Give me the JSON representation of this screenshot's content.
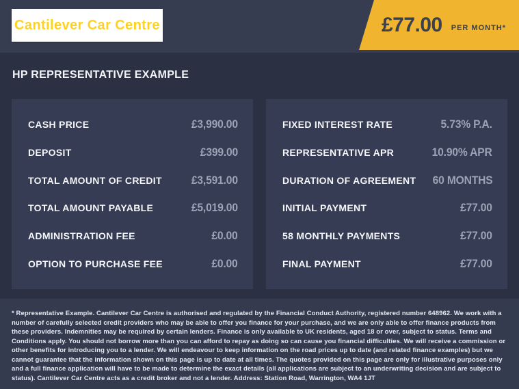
{
  "brand": {
    "logo_text": "Cantilever Car Centre",
    "logo_text_color": "#ffd21e",
    "logo_bg_color": "#ffffff"
  },
  "price_banner": {
    "amount": "£77.00",
    "period": "PER MONTH*",
    "bg_color": "#f0b42e",
    "text_color": "#3c414e"
  },
  "heading": "HP REPRESENTATIVE EXAMPLE",
  "finance": {
    "left_rows": [
      {
        "label": "CASH PRICE",
        "value": "£3,990.00"
      },
      {
        "label": "DEPOSIT",
        "value": "£399.00"
      },
      {
        "label": "TOTAL AMOUNT OF CREDIT",
        "value": "£3,591.00"
      },
      {
        "label": "TOTAL AMOUNT PAYABLE",
        "value": "£5,019.00"
      },
      {
        "label": "ADMINISTRATION FEE",
        "value": "£0.00"
      },
      {
        "label": "OPTION TO PURCHASE FEE",
        "value": "£0.00"
      }
    ],
    "right_rows": [
      {
        "label": "FIXED INTEREST RATE",
        "value": "5.73% P.A."
      },
      {
        "label": "REPRESENTATIVE APR",
        "value": "10.90% APR"
      },
      {
        "label": "DURATION OF AGREEMENT",
        "value": "60 MONTHS"
      },
      {
        "label": "INITIAL PAYMENT",
        "value": "£77.00"
      },
      {
        "label": "58 MONTHLY PAYMENTS",
        "value": "£77.00"
      },
      {
        "label": "FINAL PAYMENT",
        "value": "£77.00"
      }
    ]
  },
  "disclaimer": "* Representative Example. Cantilever Car Centre is authorised and regulated by the Financial Conduct Authority, registered number 648962. We work with a number of carefully selected credit providers who may be able to offer you finance for your purchase, and we are only able to offer finance products from these providers. Indemnities may be required by certain lenders. Finance is only available to UK residents, aged 18 or over, subject to status. Terms and Conditions apply. You should not borrow more than you can afford to repay as doing so can cause you financial difficulties. We will receive a commission or other benefits for introducing you to a lender. We will endeavour to keep information on the road prices up to date (and related finance examples) but we cannot guarantee that the information shown on this page is up to date at all times. The quotes provided on this page are only for illustrative purposes only and a full finance application will have to be made to determine the exact details (all applications are subject to an underwriting decision and are subject to status). Cantilever Car Centre acts as a credit broker and not a lender. Address: Station Road, Warrington, WA4 1JT",
  "colors": {
    "top_band_bg": "#373d50",
    "main_bg": "#2b3143",
    "panel_bg": "#353c53",
    "footer_bg": "#343b4e",
    "label_color": "#f5f6fa",
    "value_color": "#9ba3b6"
  }
}
